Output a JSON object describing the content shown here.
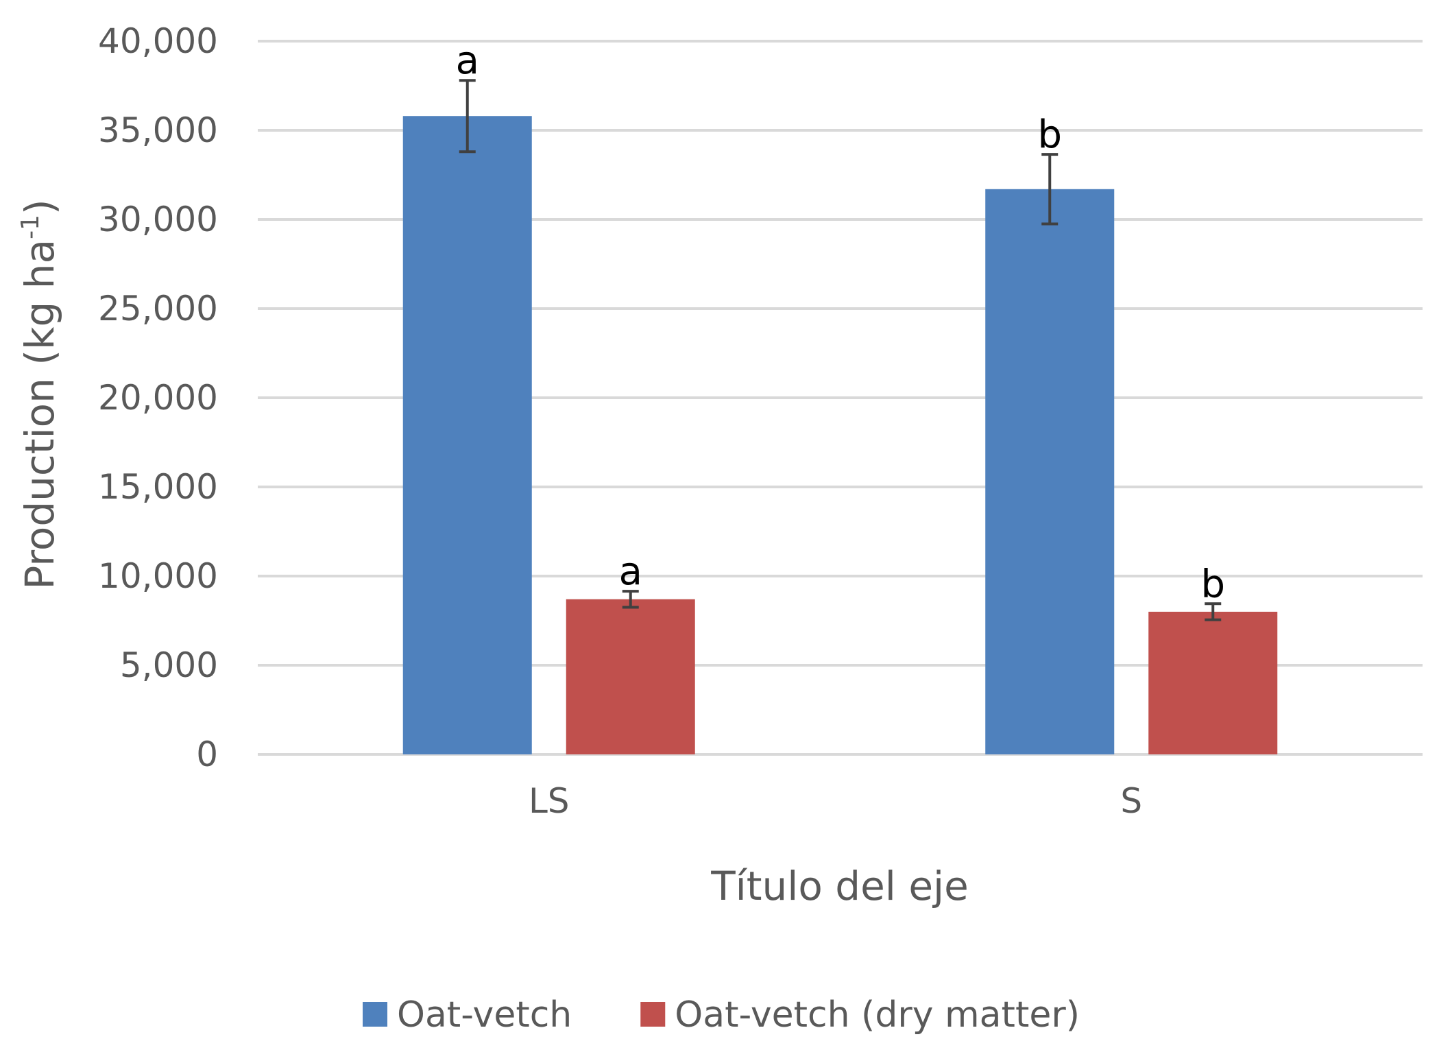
{
  "chart_data": {
    "type": "bar",
    "categories": [
      "LS",
      "S"
    ],
    "series": [
      {
        "name": "Oat-vetch",
        "color": "#4f81bd",
        "values": [
          35800,
          31700
        ],
        "error": [
          2000,
          1950
        ],
        "sig": [
          "a",
          "b"
        ]
      },
      {
        "name": "Oat-vetch (dry matter)",
        "color": "#c0504d",
        "values": [
          8700,
          8000
        ],
        "error": [
          450,
          450
        ],
        "sig": [
          "a",
          "b"
        ]
      }
    ],
    "xlabel": "Título del eje",
    "ylabel_main": "Production (kg ha",
    "ylabel_sup": "-1",
    "ylabel_close": ")",
    "ylim": [
      0,
      40000
    ],
    "yticks": [
      "0",
      "5,000",
      "10,000",
      "15,000",
      "20,000",
      "25,000",
      "30,000",
      "35,000",
      "40,000"
    ],
    "grid": true,
    "legend_position": "bottom"
  }
}
